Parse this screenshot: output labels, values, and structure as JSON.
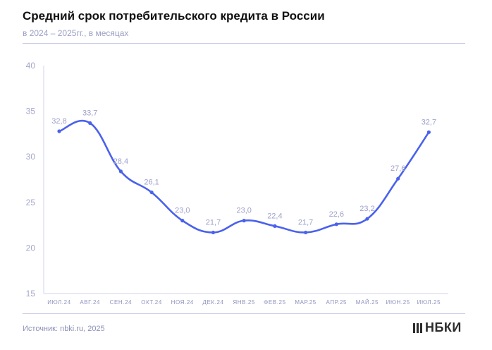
{
  "header": {
    "title": "Средний срок потребительского кредита в России",
    "subtitle": "в 2024 – 2025гг., в месяцах"
  },
  "footer": {
    "source": "Источник: nbki.ru, 2025",
    "logo_text": "НБКИ"
  },
  "colors": {
    "line": "#4a61ec",
    "axis": "#c9cce6",
    "labels": "#9da1cc"
  },
  "chart_data": {
    "type": "line",
    "title": "Средний срок потребительского кредита в России",
    "subtitle": "в 2024 – 2025гг., в месяцах",
    "categories": [
      "ИЮЛ.24",
      "АВГ.24",
      "СЕН.24",
      "ОКТ.24",
      "НОЯ.24",
      "ДЕК.24",
      "ЯНВ.25",
      "ФЕВ.25",
      "МАР.25",
      "АПР.25",
      "МАЙ.25",
      "ИЮН.25",
      "ИЮЛ.25"
    ],
    "values": [
      32.8,
      33.7,
      28.4,
      26.1,
      23.0,
      21.7,
      23.0,
      22.4,
      21.7,
      22.6,
      23.2,
      27.6,
      32.7
    ],
    "value_labels": [
      "32,8",
      "33,7",
      "28,4",
      "26,1",
      "23,0",
      "21,7",
      "23,0",
      "22,4",
      "21,7",
      "22,6",
      "23,2",
      "27,6",
      "32,7"
    ],
    "ylim": [
      15,
      40
    ],
    "yticks": [
      15,
      20,
      25,
      30,
      35,
      40
    ],
    "grid": false,
    "legend": "none"
  }
}
